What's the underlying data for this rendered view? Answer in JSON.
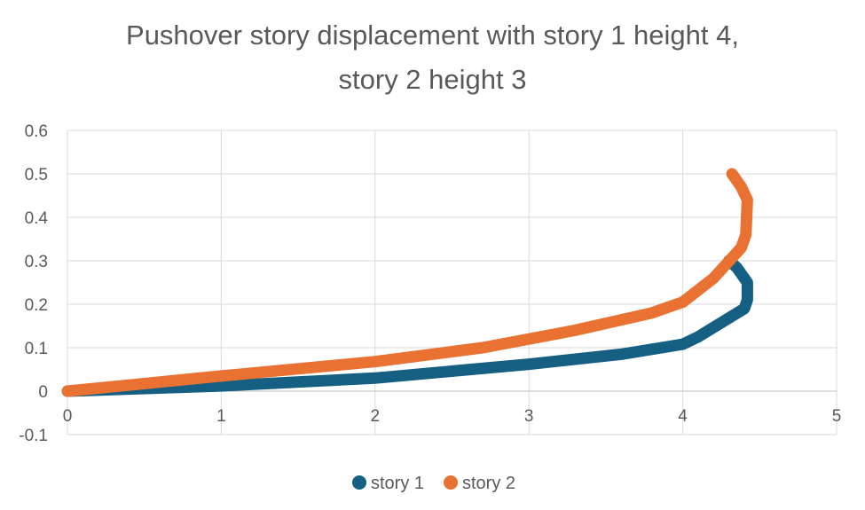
{
  "chart_data": {
    "type": "scatter",
    "title_lines": [
      "Pushover story displacement with story 1 height 4,",
      "story 2 height 3"
    ],
    "xlabel": "",
    "ylabel": "",
    "xlim": [
      0,
      5
    ],
    "ylim": [
      -0.1,
      0.6
    ],
    "x_ticks": [
      "0",
      "1",
      "2",
      "3",
      "4",
      "5"
    ],
    "y_ticks": [
      "-0.1",
      "0",
      "0.1",
      "0.2",
      "0.3",
      "0.4",
      "0.5",
      "0.6"
    ],
    "grid": true,
    "legend_position": "bottom",
    "series": [
      {
        "name": "story 1",
        "color": "#156082",
        "points": [
          [
            0,
            0
          ],
          [
            1,
            0.012
          ],
          [
            2,
            0.03
          ],
          [
            3,
            0.062
          ],
          [
            3.6,
            0.085
          ],
          [
            4.0,
            0.108
          ],
          [
            4.1,
            0.125
          ],
          [
            4.4,
            0.19
          ],
          [
            4.42,
            0.21
          ],
          [
            4.42,
            0.25
          ],
          [
            4.35,
            0.285
          ],
          [
            4.3,
            0.3
          ]
        ]
      },
      {
        "name": "story 2",
        "color": "#E97132",
        "points": [
          [
            0,
            0
          ],
          [
            1,
            0.035
          ],
          [
            2,
            0.068
          ],
          [
            2.7,
            0.1
          ],
          [
            3.3,
            0.14
          ],
          [
            3.8,
            0.18
          ],
          [
            4.0,
            0.205
          ],
          [
            4.2,
            0.26
          ],
          [
            4.38,
            0.33
          ],
          [
            4.41,
            0.36
          ],
          [
            4.42,
            0.44
          ],
          [
            4.38,
            0.47
          ],
          [
            4.32,
            0.5
          ]
        ]
      }
    ]
  }
}
